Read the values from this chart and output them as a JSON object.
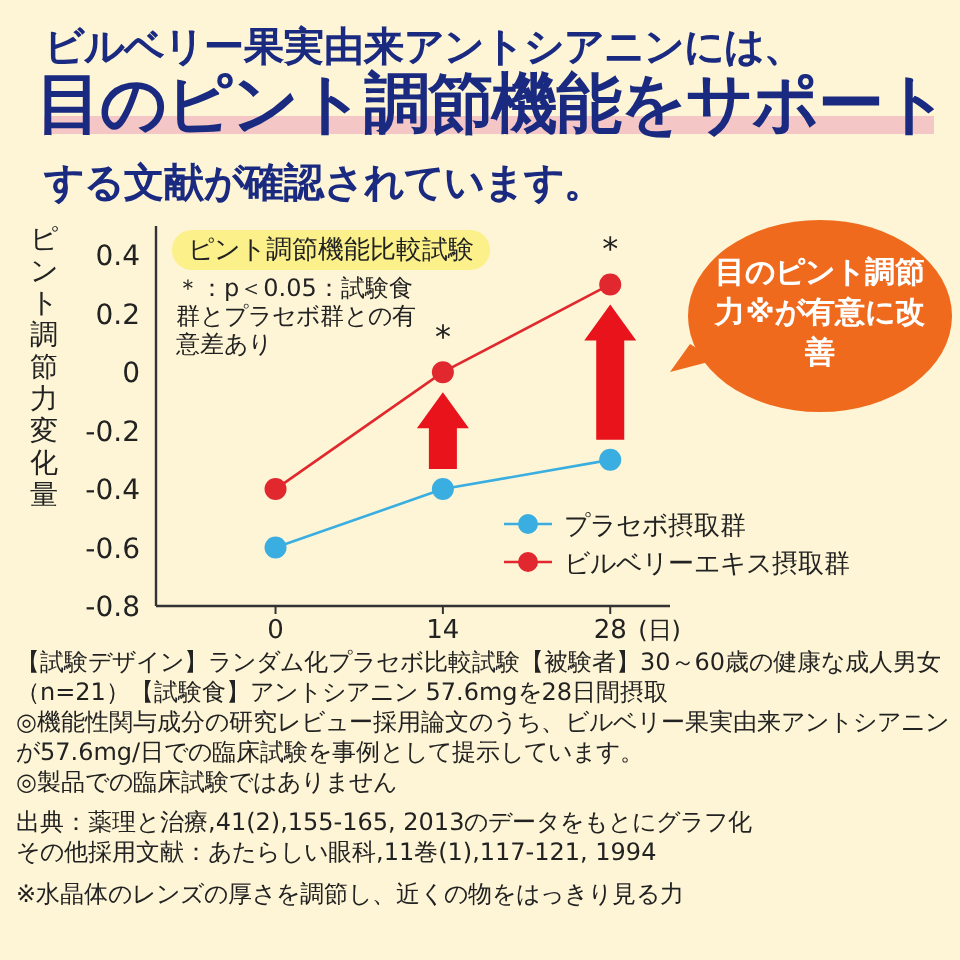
{
  "chart_data": {
    "type": "line",
    "title": "ビルベリー果実由来アントシアニンには、",
    "subtitle": "目のピント調節機能をサポート",
    "xlabel": "(日)",
    "ylabel": "ピント調節力変化量",
    "x": [
      0,
      14,
      28
    ],
    "series": [
      {
        "name": "プラセボ摂取群",
        "color": "#3aaee0",
        "values": [
          -0.6,
          -0.4,
          -0.3
        ]
      },
      {
        "name": "ビルベリーエキス摂取群",
        "color": "#e0282e",
        "values": [
          -0.4,
          0.0,
          0.3
        ]
      }
    ],
    "xlim": [
      -10,
      33
    ],
    "xticks": [
      0,
      14,
      28
    ],
    "ylim": [
      -0.8,
      0.5
    ],
    "yticks": [
      0.4,
      0.2,
      0,
      -0.2,
      -0.4,
      -0.6,
      -0.8
    ],
    "marker": "circle",
    "line_style": "solid",
    "legend": "bottom right",
    "grid": false,
    "annotations": [
      "する文献が確認されています。",
      "ピント調節機能比較試験",
      "＊：p＜0.05：試験食群とプラセボ群との有意差あり",
      "目のピント調節力※が有意に改善",
      {
        "text": "*",
        "x": 14,
        "y": 0.0
      },
      {
        "text": "*",
        "x": 28,
        "y": 0.3
      },
      "【試験デザイン】ランダム化プラセボ比較試験【被験者】30～60歳の健康な成人男女（n=21）【試験食】アントシアニン 57.6mgを28日間摂取",
      "◎機能性関与成分の研究レビュー採用論文のうち、ビルベリー果実由来アントシアニンが57.6mg/日での臨床試験を事例として提示しています。",
      "◎製品での臨床試験ではありません",
      "出典：薬理と治療,41(2),155-165, 2013のデータをもとにグラフ化",
      "その他採用文献：あたらしい眼科,11巻(1),117-121, 1994",
      "※水晶体のレンズの厚さを調節し、近くの物をはっきり見る力"
    ]
  }
}
